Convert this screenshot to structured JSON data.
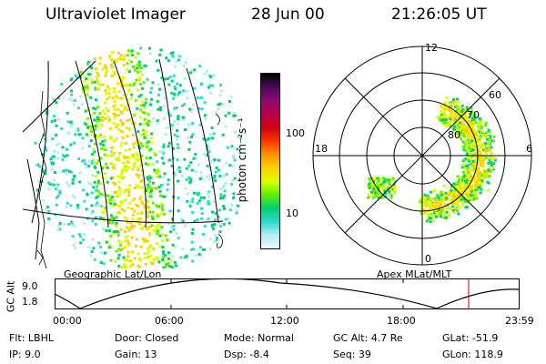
{
  "header": {
    "instrument": "Ultraviolet Imager",
    "date": "28 Jun 00",
    "time": "21:26:05 UT"
  },
  "left_panel": {
    "caption": "Geographic Lat/Lon"
  },
  "colorbar": {
    "label": "photon cm⁻²s⁻¹",
    "tick_labels": [
      "100",
      "10"
    ],
    "colors": [
      "#000000",
      "#4a0a5e",
      "#8a0a6a",
      "#b8004a",
      "#d00010",
      "#ff3000",
      "#ff9000",
      "#ffd000",
      "#d8ff00",
      "#66ee00",
      "#00d070",
      "#30d8d0",
      "#b0ecf2",
      "#f0f8fa"
    ]
  },
  "polar_panel": {
    "caption": "Apex MLat/MLT",
    "mlt_labels": [
      "12",
      "18",
      "6",
      "0"
    ],
    "mlat_labels": [
      "60",
      "70",
      "80"
    ]
  },
  "altitude_plot": {
    "ylabel": "GC Alt",
    "y_ticks": [
      "9.0",
      "1.8"
    ],
    "x_ticks": [
      "00:00",
      "06:00",
      "12:00",
      "18:00",
      "23:59"
    ]
  },
  "status": {
    "filter": "Flt: LBHL",
    "ip": "IP:  9.0",
    "door": "Door: Closed",
    "gain": "Gain: 13",
    "mode": "Mode: Normal",
    "dsp": "Dsp:    -8.4",
    "gc_alt": "GC Alt: 4.7 Re",
    "seq": "Seq: 39",
    "glat": "GLat: -51.9",
    "glon": "GLon: 118.9"
  }
}
